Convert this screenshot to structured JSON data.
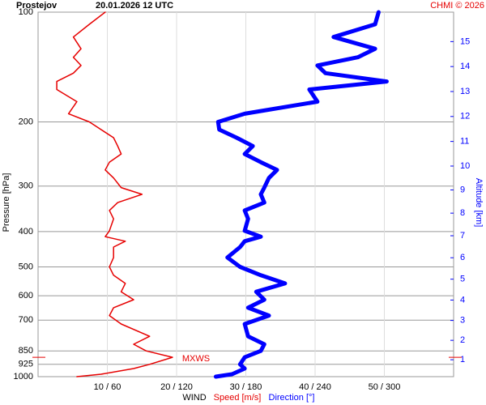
{
  "chart_data": {
    "type": "sounding",
    "title": "Prostejov",
    "subtitle": "20.01.2026 12 UTC",
    "credit": "CHMI © 2026",
    "ylabel": "Pressure [hPa]",
    "y2label": "Altitude [km]",
    "xlabel": "WIND",
    "xlabel_speed": "Speed [m/s]",
    "xlabel_direction": "Direction [°]",
    "pressure": [
      1000,
      985,
      950,
      925,
      885,
      850,
      815,
      775,
      717,
      680,
      647,
      615,
      585,
      555,
      527,
      500,
      471,
      441,
      425,
      413,
      398,
      369,
      350,
      333,
      316,
      303,
      285,
      271,
      258,
      245,
      233,
      221,
      210,
      200,
      190,
      176,
      163,
      155,
      147,
      140,
      133,
      126,
      117,
      108,
      100
    ],
    "series": [
      {
        "name": "Speed [m/s]",
        "color": "#e60000",
        "values": [
          5.6,
          9.1,
          13.8,
          16.1,
          19.4,
          15.6,
          13.8,
          16.1,
          12.0,
          10.3,
          10.9,
          13.8,
          12.0,
          12.6,
          10.9,
          10.3,
          10.9,
          10.9,
          12.6,
          9.7,
          10.3,
          10.9,
          10.3,
          11.5,
          15.0,
          12.0,
          10.9,
          9.7,
          10.3,
          12.0,
          11.5,
          10.9,
          9.1,
          7.4,
          4.4,
          5.6,
          2.7,
          2.7,
          5.1,
          6.2,
          5.1,
          6.2,
          5.1,
          7.4,
          9.7
        ]
      },
      {
        "name": "Direction [°]",
        "color": "#0000ff",
        "axis": "x2",
        "values": [
          154,
          168,
          179,
          175,
          179,
          193,
          196,
          182,
          179,
          200,
          182,
          196,
          189,
          214,
          193,
          175,
          164,
          175,
          179,
          193,
          179,
          182,
          179,
          196,
          193,
          196,
          200,
          207,
          193,
          179,
          186,
          172,
          157,
          156,
          179,
          242,
          235,
          302,
          249,
          242,
          277,
          292,
          256,
          292,
          295
        ]
      }
    ],
    "xlim": [
      0,
      60
    ],
    "x2lim": [
      0,
      360
    ],
    "xticks": [
      {
        "value": 10,
        "label": "10 / 60"
      },
      {
        "value": 20,
        "label": "20 / 120"
      },
      {
        "value": 30,
        "label": "30 / 180"
      },
      {
        "value": 40,
        "label": "40 / 240"
      },
      {
        "value": 50,
        "label": "50 / 300"
      }
    ],
    "ylim": [
      1000,
      100
    ],
    "log_y": true,
    "yticks": [
      100,
      200,
      300,
      400,
      500,
      600,
      700,
      850,
      925,
      1000
    ],
    "y2ticks": [
      1,
      2,
      3,
      4,
      5,
      6,
      7,
      8,
      9,
      10,
      11,
      12,
      13,
      14,
      15
    ],
    "mxws": {
      "label": "MXWS",
      "pressure": 885
    },
    "grid": true
  }
}
